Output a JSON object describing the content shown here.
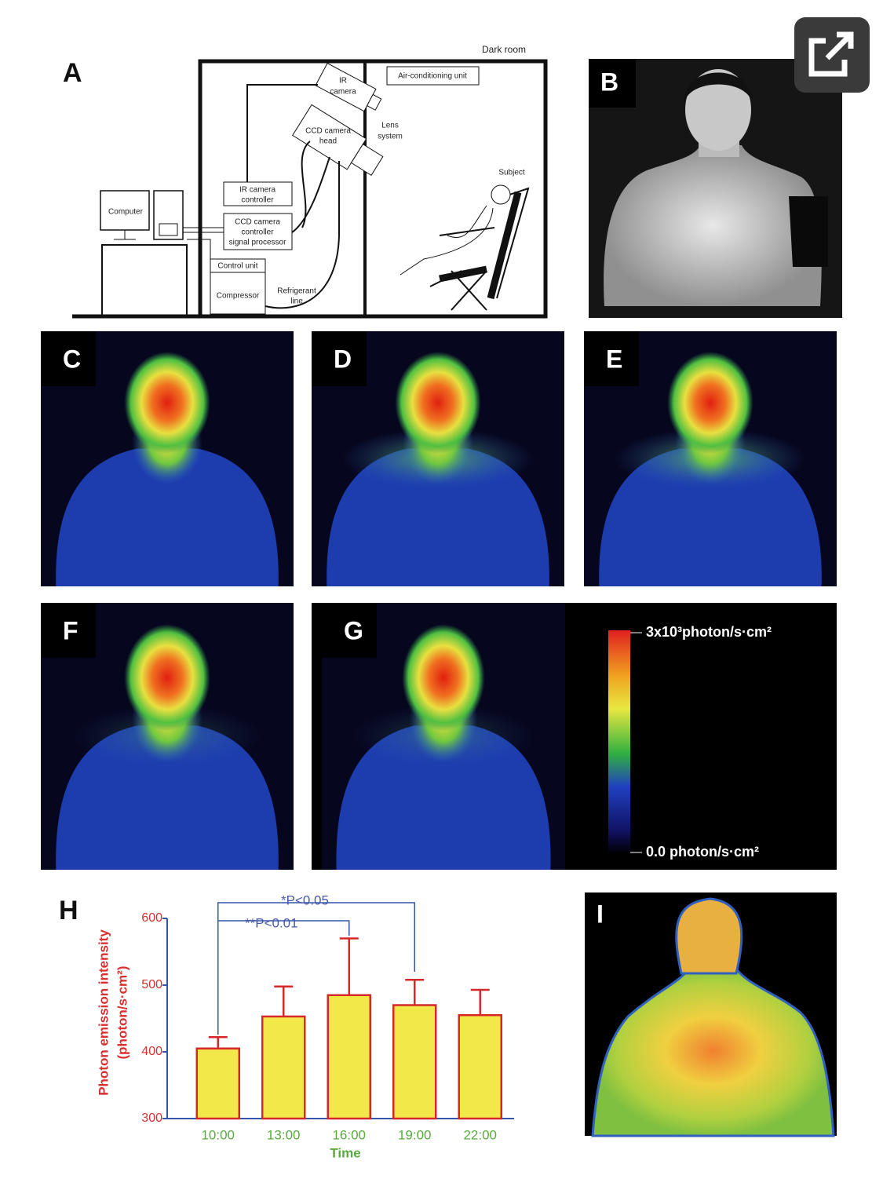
{
  "panels": {
    "a": "A",
    "b": "B",
    "c": "C",
    "d": "D",
    "e": "E",
    "f": "F",
    "g": "G",
    "h": "H",
    "i": "I"
  },
  "diagram": {
    "dark_room": "Dark room",
    "ir_camera": [
      "IR",
      "camera"
    ],
    "air_conditioning": "Air-conditioning unit",
    "ccd_camera_head": [
      "CCD camera",
      "head"
    ],
    "lens_system": [
      "Lens",
      "system"
    ],
    "subject": "Subject",
    "computer": "Computer",
    "ir_camera_controller": [
      "IR camera",
      "controller"
    ],
    "ccd_controller": [
      "CCD camera",
      "controller",
      "signal processor"
    ],
    "control_unit": "Control unit",
    "compressor": "Compressor",
    "refrigerant_line": [
      "Refrigerant",
      "line"
    ]
  },
  "colorbar": {
    "max_label": "3x10³photon/s·cm²",
    "min_label": "0.0 photon/s·cm²"
  },
  "chart_data": {
    "type": "bar",
    "categories": [
      "10:00",
      "13:00",
      "16:00",
      "19:00",
      "22:00"
    ],
    "values": [
      405,
      453,
      485,
      470,
      455
    ],
    "errors": [
      17,
      45,
      85,
      38,
      38
    ],
    "color": "#f2e84a",
    "edge_color": "#d62828",
    "ylim": [
      300,
      600
    ],
    "yticks": [
      300,
      400,
      500,
      600
    ],
    "y_label": [
      "Photon emission intensity",
      "(photon/s·cm²)"
    ],
    "x_label": "Time",
    "annotations": [
      "*P<0.05",
      "**P<0.01"
    ]
  }
}
